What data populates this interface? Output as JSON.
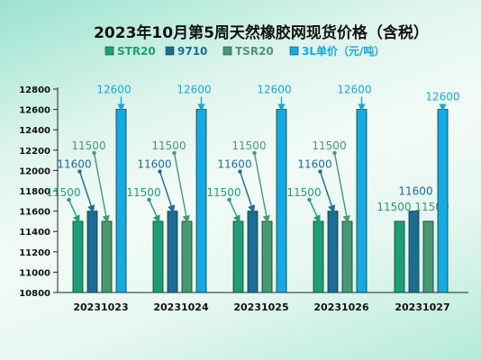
{
  "chart_data": {
    "type": "bar",
    "title": "2023年10月第5周天然橡胶网现货价格（含税）",
    "categories": [
      "20231023",
      "20231024",
      "20231025",
      "20231026",
      "20231027"
    ],
    "series": [
      {
        "name": "STR20",
        "color": "#1e9e78",
        "values": [
          11500,
          11500,
          11500,
          11500,
          11500
        ]
      },
      {
        "name": "9710",
        "color": "#1c6c95",
        "values": [
          11600,
          11600,
          11600,
          11600,
          11600
        ]
      },
      {
        "name": "TSR20",
        "color": "#4a9774",
        "values": [
          11500,
          11500,
          11500,
          11500,
          11500
        ]
      },
      {
        "name": "3L单价（元/吨）",
        "color": "#16a9e2",
        "values": [
          12600,
          12600,
          12600,
          12600,
          12600
        ]
      }
    ],
    "data_labels": [
      [
        "11500",
        "11600",
        "11500",
        "12600"
      ],
      [
        "11500",
        "11600",
        "11500",
        "12600"
      ],
      [
        "11500",
        "11600",
        "11500",
        "12600"
      ],
      [
        "11500",
        "11600",
        "11500",
        "12600"
      ],
      [
        "11500",
        "11600",
        "11500",
        "12600"
      ]
    ],
    "yticks": [
      10800,
      11000,
      11200,
      11400,
      11600,
      11800,
      12000,
      12200,
      12400,
      12600,
      12800
    ],
    "ylim": [
      10800,
      12800
    ],
    "xlabel": "",
    "ylabel": "",
    "legend_position": "top"
  }
}
